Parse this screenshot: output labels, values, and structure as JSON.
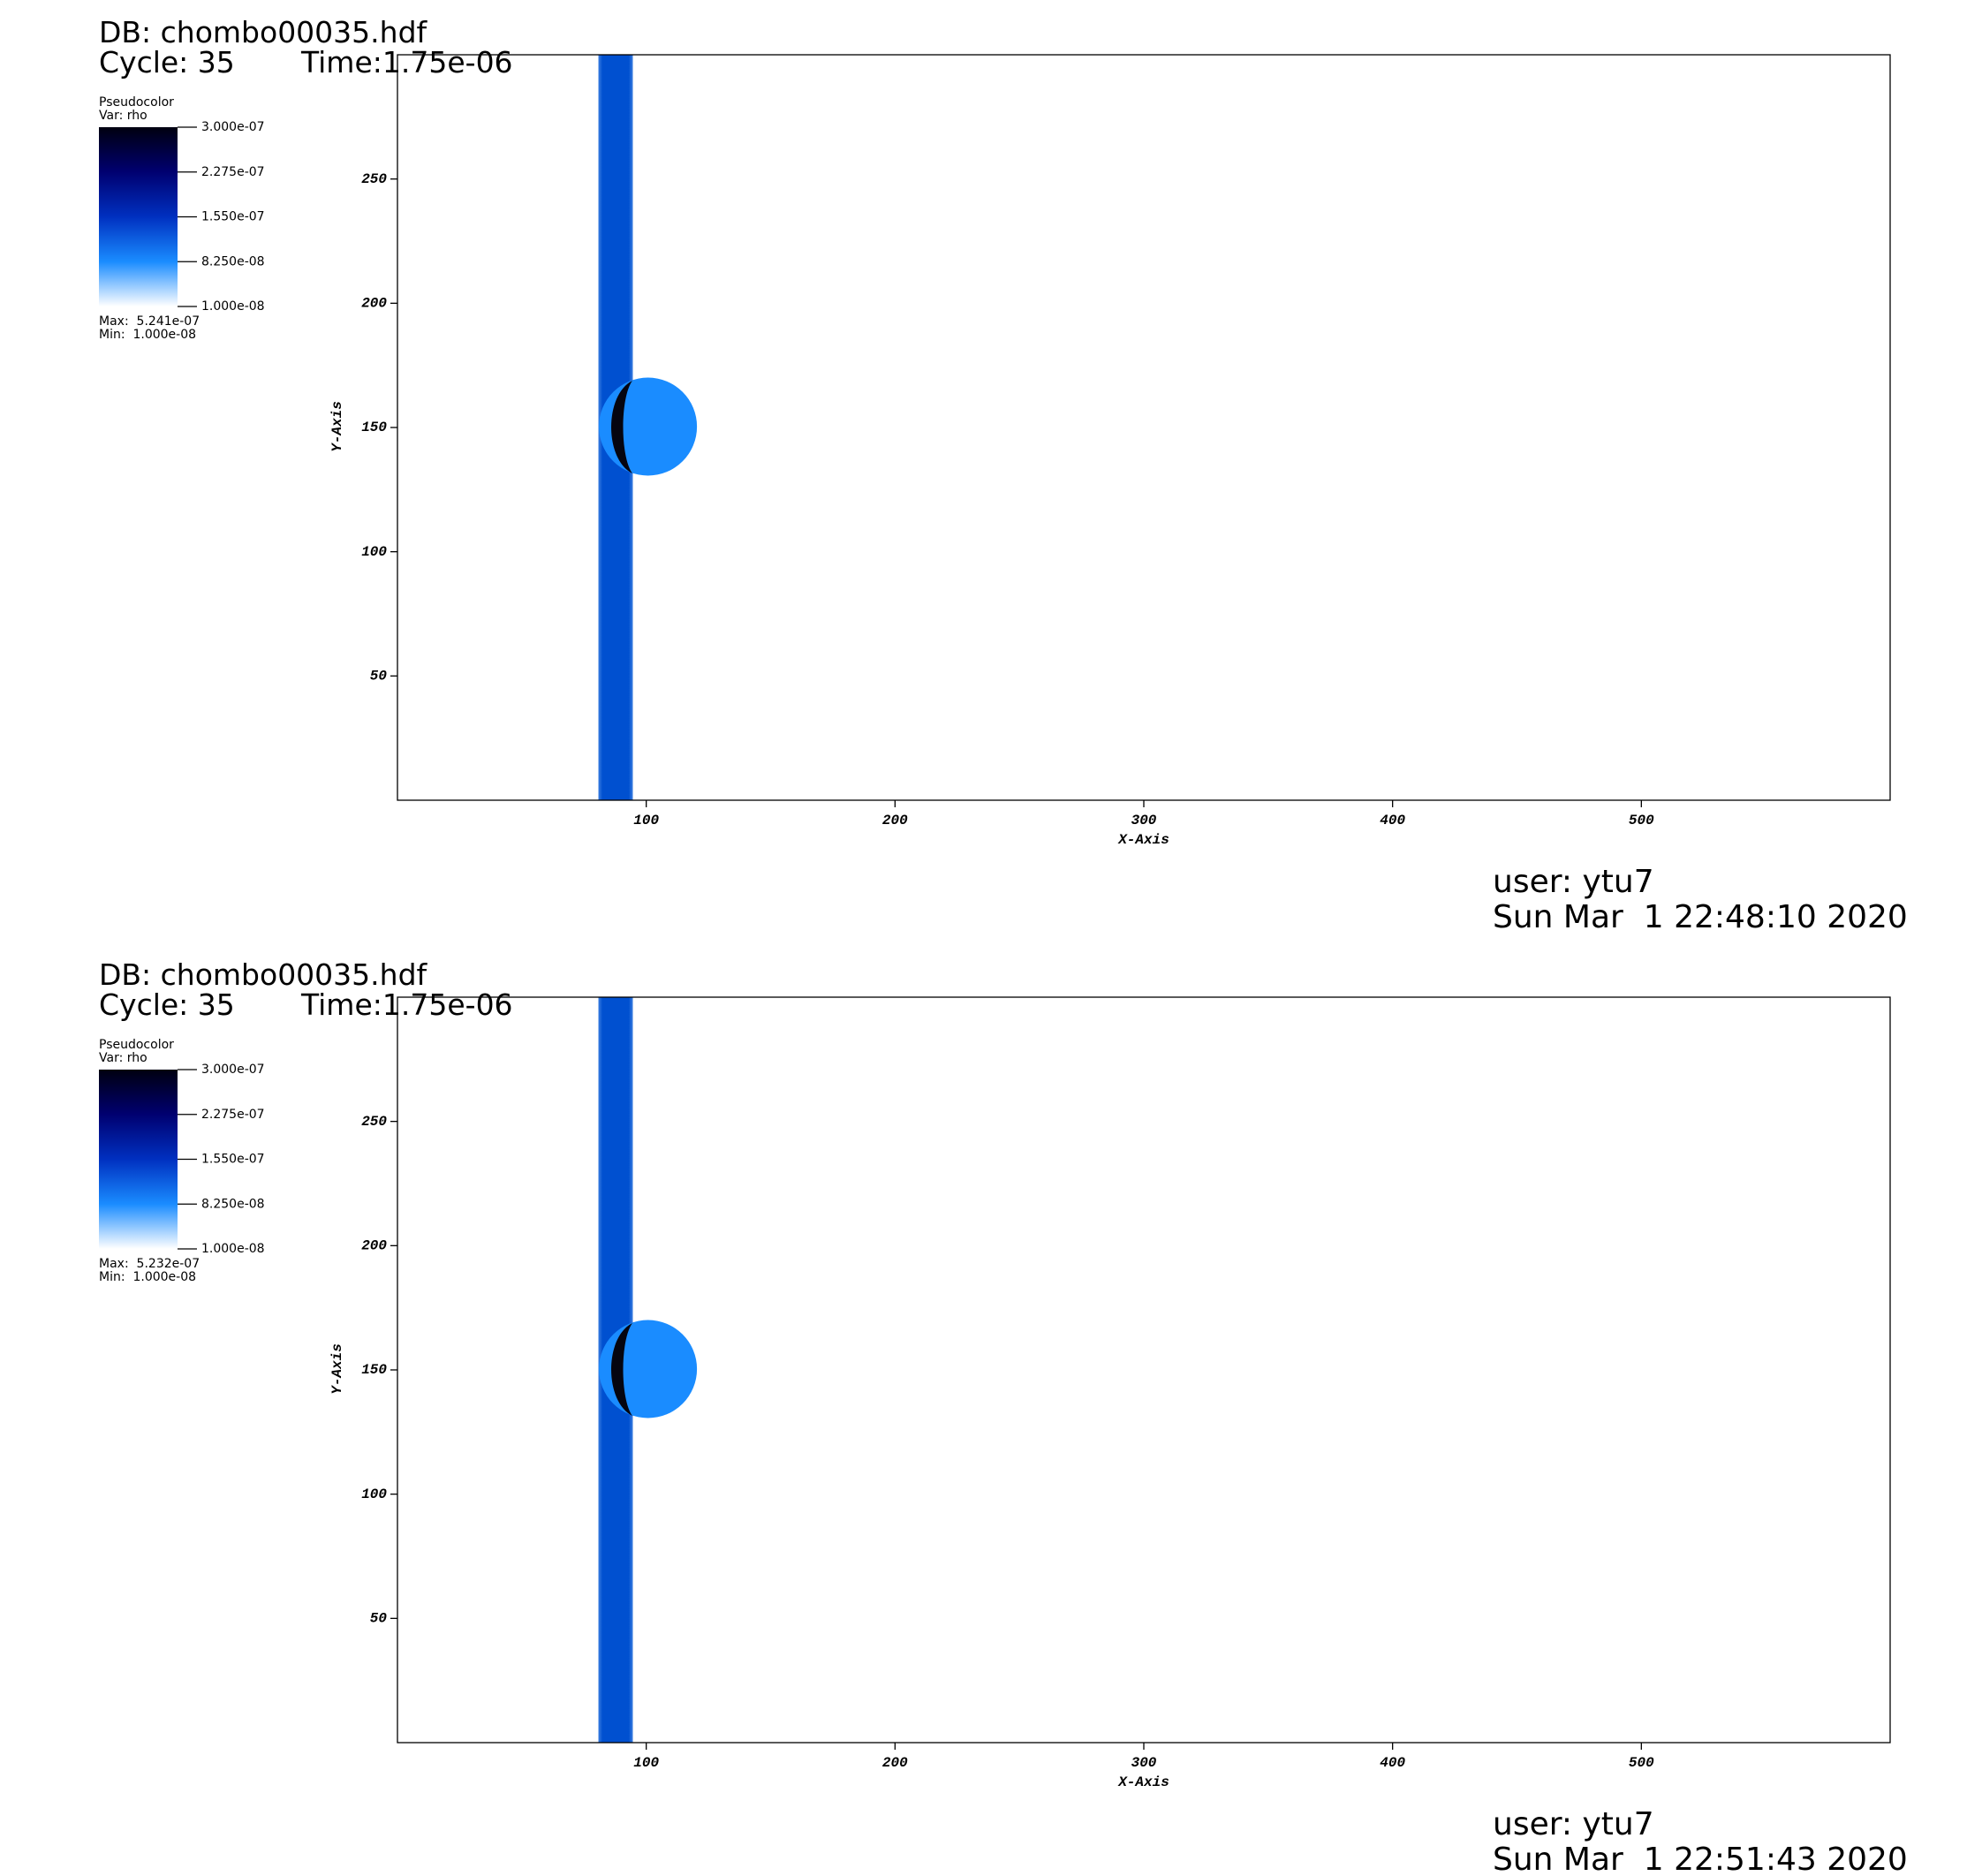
{
  "chart_data": [
    {
      "type": "pseudocolor",
      "db": "DB: chombo00035.hdf",
      "cycle": "Cycle: 35",
      "time": "Time:1.75e-06",
      "legend_title": "Pseudocolor",
      "variable": "Var: rho",
      "colorbar_lim": [
        1e-08,
        3e-07
      ],
      "colorbar_ticks": [
        {
          "value": 3e-07,
          "label": "3.000e-07"
        },
        {
          "value": 2.275e-07,
          "label": "2.275e-07"
        },
        {
          "value": 1.55e-07,
          "label": "1.550e-07"
        },
        {
          "value": 8.25e-08,
          "label": "8.250e-08"
        },
        {
          "value": 1e-08,
          "label": "1.000e-08"
        }
      ],
      "colormap": [
        "#ffffff",
        "#1a8cff",
        "#0030c0",
        "#000070",
        "#000010"
      ],
      "max": "Max:  5.241e-07",
      "min": "Min:  1.000e-08",
      "xlabel": "X-Axis",
      "ylabel": "Y-Axis",
      "xlim": [
        0,
        600
      ],
      "ylim": [
        0,
        300
      ],
      "xticks": [
        100,
        200,
        300,
        400,
        500
      ],
      "yticks": [
        50,
        100,
        150,
        200,
        250
      ],
      "user": "user: ytu7",
      "date": "Sun Mar  1 22:48:10 2020"
    },
    {
      "type": "pseudocolor",
      "db": "DB: chombo00035.hdf",
      "cycle": "Cycle: 35",
      "time": "Time:1.75e-06",
      "legend_title": "Pseudocolor",
      "variable": "Var: rho",
      "colorbar_lim": [
        1e-08,
        3e-07
      ],
      "colorbar_ticks": [
        {
          "value": 3e-07,
          "label": "3.000e-07"
        },
        {
          "value": 2.275e-07,
          "label": "2.275e-07"
        },
        {
          "value": 1.55e-07,
          "label": "1.550e-07"
        },
        {
          "value": 8.25e-08,
          "label": "8.250e-08"
        },
        {
          "value": 1e-08,
          "label": "1.000e-08"
        }
      ],
      "colormap": [
        "#ffffff",
        "#1a8cff",
        "#0030c0",
        "#000070",
        "#000010"
      ],
      "max": "Max:  5.232e-07",
      "min": "Min:  1.000e-08",
      "xlabel": "X-Axis",
      "ylabel": "Y-Axis",
      "xlim": [
        0,
        600
      ],
      "ylim": [
        0,
        300
      ],
      "xticks": [
        100,
        200,
        300,
        400,
        500
      ],
      "yticks": [
        50,
        100,
        150,
        200,
        250
      ],
      "user": "user: ytu7",
      "date": "Sun Mar  1 22:51:43 2020"
    }
  ]
}
